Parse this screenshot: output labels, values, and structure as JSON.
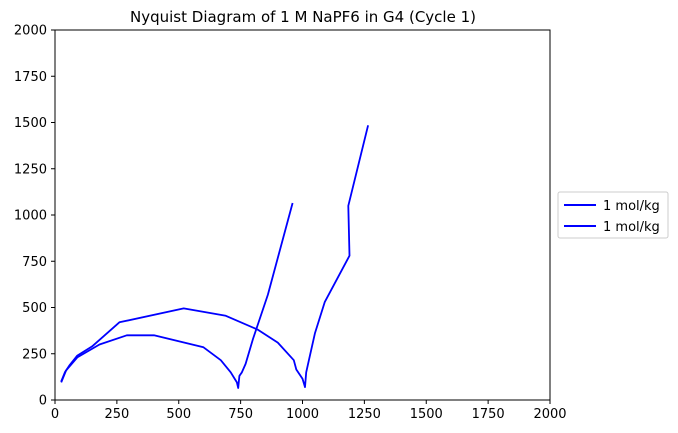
{
  "chart_data": {
    "type": "line",
    "title": "Nyquist Diagram of 1 M NaPF6 in G4 (Cycle 1)",
    "xlabel": "",
    "ylabel": "",
    "xlim": [
      0,
      2000
    ],
    "ylim": [
      0,
      2000
    ],
    "xticks": [
      0,
      250,
      500,
      750,
      1000,
      1250,
      1500,
      1750,
      2000
    ],
    "yticks": [
      0,
      250,
      500,
      750,
      1000,
      1250,
      1500,
      1750,
      2000
    ],
    "grid": false,
    "legend_position": "center-right-outside",
    "series": [
      {
        "name": "1 mol/kg",
        "color": "#0000ff",
        "points": [
          [
            25,
            100
          ],
          [
            40,
            150
          ],
          [
            60,
            190
          ],
          [
            90,
            240
          ],
          [
            150,
            290
          ],
          [
            260,
            420
          ],
          [
            520,
            495
          ],
          [
            690,
            455
          ],
          [
            820,
            380
          ],
          [
            900,
            310
          ],
          [
            965,
            215
          ],
          [
            975,
            165
          ],
          [
            1000,
            115
          ],
          [
            1010,
            70
          ],
          [
            1015,
            150
          ],
          [
            1025,
            210
          ],
          [
            1050,
            360
          ],
          [
            1090,
            530
          ],
          [
            1190,
            780
          ],
          [
            1185,
            1050
          ],
          [
            1265,
            1485
          ]
        ]
      },
      {
        "name": "1 mol/kg",
        "color": "#0000ff",
        "points": [
          [
            25,
            95
          ],
          [
            45,
            160
          ],
          [
            90,
            230
          ],
          [
            180,
            300
          ],
          [
            290,
            350
          ],
          [
            400,
            350
          ],
          [
            600,
            285
          ],
          [
            670,
            215
          ],
          [
            710,
            150
          ],
          [
            735,
            95
          ],
          [
            740,
            65
          ],
          [
            745,
            130
          ],
          [
            755,
            150
          ],
          [
            770,
            195
          ],
          [
            800,
            330
          ],
          [
            860,
            570
          ],
          [
            960,
            1065
          ]
        ]
      }
    ]
  }
}
